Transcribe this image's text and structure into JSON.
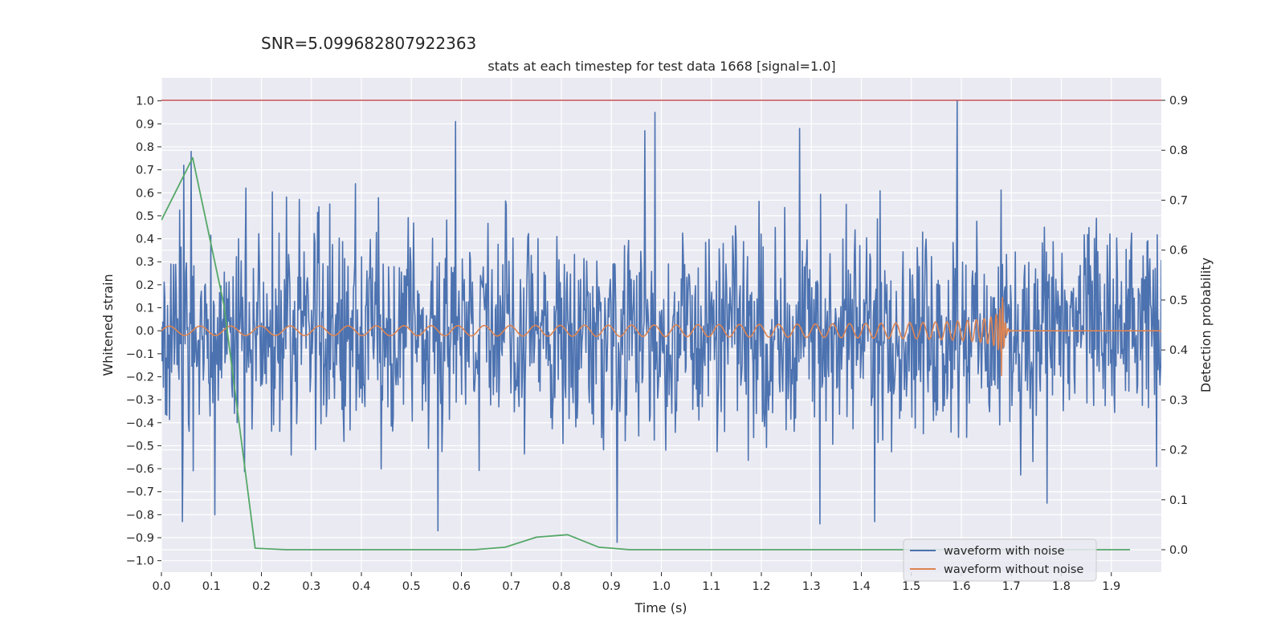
{
  "chart_data": {
    "type": "line",
    "suptitle": "SNR=5.099682807922363",
    "title": "stats at each timestep for test data 1668 [signal=1.0]",
    "xlabel": "Time (s)",
    "ylabel": "Whitened strain",
    "y2label": "Detection probability",
    "xlim": [
      0.0,
      2.0
    ],
    "ylim": [
      -1.05,
      1.1
    ],
    "y2lim": [
      -0.045,
      0.945
    ],
    "x_ticks": [
      "0.0",
      "0.1",
      "0.2",
      "0.3",
      "0.4",
      "0.5",
      "0.6",
      "0.7",
      "0.8",
      "0.9",
      "1.0",
      "1.1",
      "1.2",
      "1.3",
      "1.4",
      "1.5",
      "1.6",
      "1.7",
      "1.8",
      "1.9"
    ],
    "y_ticks": [
      "1.0",
      "0.9",
      "0.8",
      "0.7",
      "0.6",
      "0.5",
      "0.4",
      "0.3",
      "0.2",
      "0.1",
      "0.0",
      "−0.1",
      "−0.2",
      "−0.3",
      "−0.4",
      "−0.5",
      "−0.6",
      "−0.7",
      "−0.8",
      "−0.9",
      "−1.0"
    ],
    "y2_ticks": [
      "0.9",
      "0.8",
      "0.7",
      "0.6",
      "0.5",
      "0.4",
      "0.3",
      "0.2",
      "0.1",
      "0.0"
    ],
    "grid": true,
    "legend_position": "lower-right",
    "background": "#eaeaf2",
    "series": [
      {
        "name": "waveform with noise",
        "axis": "left",
        "color": "#4c72b0",
        "style": "noise",
        "amplitude_range": [
          -0.92,
          1.0
        ],
        "notable_peaks": [
          {
            "x": 0.045,
            "y": 0.72
          },
          {
            "x": 0.042,
            "y": -0.83
          },
          {
            "x": 0.06,
            "y": 0.78
          },
          {
            "x": 0.107,
            "y": -0.8
          },
          {
            "x": 0.553,
            "y": -0.87
          },
          {
            "x": 0.588,
            "y": 0.91
          },
          {
            "x": 0.912,
            "y": -0.92
          },
          {
            "x": 0.967,
            "y": 0.87
          },
          {
            "x": 0.987,
            "y": 0.95
          },
          {
            "x": 1.276,
            "y": 0.88
          },
          {
            "x": 1.317,
            "y": -0.84
          },
          {
            "x": 1.427,
            "y": -0.83
          },
          {
            "x": 1.592,
            "y": 1.0
          },
          {
            "x": 1.772,
            "y": -0.75
          }
        ]
      },
      {
        "name": "waveform without noise",
        "axis": "left",
        "color": "#dd8452",
        "style": "chirp",
        "merger_time": 1.68,
        "start_amplitude": 0.02,
        "peak_amplitude": 0.27,
        "start_frequency": 16
      },
      {
        "axis": "right",
        "color": "#55a868",
        "x": [
          0.0,
          0.0625,
          0.125,
          0.1875,
          0.25,
          0.3125,
          0.375,
          0.4375,
          0.5,
          0.5625,
          0.625,
          0.6875,
          0.75,
          0.8125,
          0.875,
          0.9375,
          1.0,
          1.0625,
          1.125,
          1.1875,
          1.25,
          1.3125,
          1.375,
          1.4375,
          1.5,
          1.5625,
          1.625,
          1.6875,
          1.75,
          1.8125,
          1.875,
          1.9375
        ],
        "values": [
          0.66,
          0.785,
          0.49,
          0.003,
          0.0,
          0.0,
          0.0,
          0.0,
          0.0,
          0.0,
          0.0,
          0.005,
          0.025,
          0.03,
          0.005,
          0.0,
          0.0,
          0.0,
          0.0,
          0.0,
          0.0,
          0.0,
          0.0,
          0.0,
          0.0,
          0.0,
          0.0,
          0.0,
          0.0,
          0.0,
          0.0,
          0.0
        ]
      },
      {
        "axis": "right",
        "color": "#c44e52",
        "style": "hline",
        "y": 0.9
      }
    ]
  }
}
